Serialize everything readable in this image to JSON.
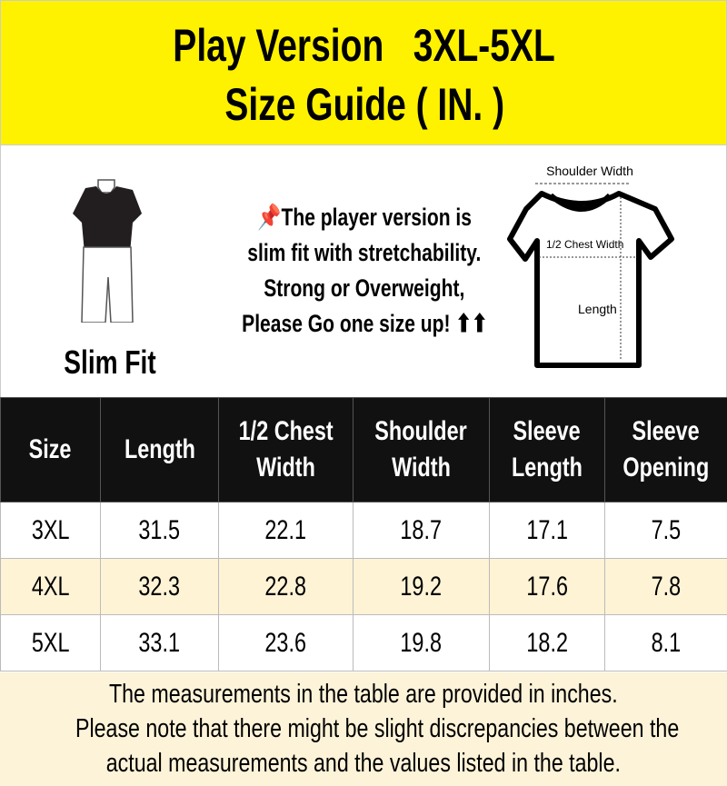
{
  "header": {
    "title_line1": "Play Version   3XL-5XL",
    "title_line2": "Size Guide ( IN. )",
    "background": "#fff200"
  },
  "fit": {
    "label": "Slim Fit"
  },
  "note": {
    "lines": [
      "📌The player version is",
      "slim fit with stretchability.",
      "Strong or Overweight,",
      "Please Go one size up! ⬆⬆"
    ]
  },
  "diagram": {
    "shoulder": "Shoulder Width",
    "chest": "1/2 Chest Width",
    "length": "Length"
  },
  "table": {
    "headers": [
      [
        "Size"
      ],
      [
        "Length"
      ],
      [
        "1/2 Chest",
        "Width"
      ],
      [
        "Shoulder",
        "Width"
      ],
      [
        "Sleeve",
        "Length"
      ],
      [
        "Sleeve",
        "Opening"
      ]
    ],
    "rows": [
      [
        "3XL",
        "31.5",
        "22.1",
        "18.7",
        "17.1",
        "7.5"
      ],
      [
        "4XL",
        "32.3",
        "22.8",
        "19.2",
        "17.6",
        "7.8"
      ],
      [
        "5XL",
        "33.1",
        "23.6",
        "19.8",
        "18.2",
        "8.1"
      ]
    ]
  },
  "footer": {
    "lines": [
      "The measurements in the table are provided in inches.",
      "Please note that there might be slight discrepancies between the",
      "actual measurements and the values listed in the table."
    ]
  }
}
